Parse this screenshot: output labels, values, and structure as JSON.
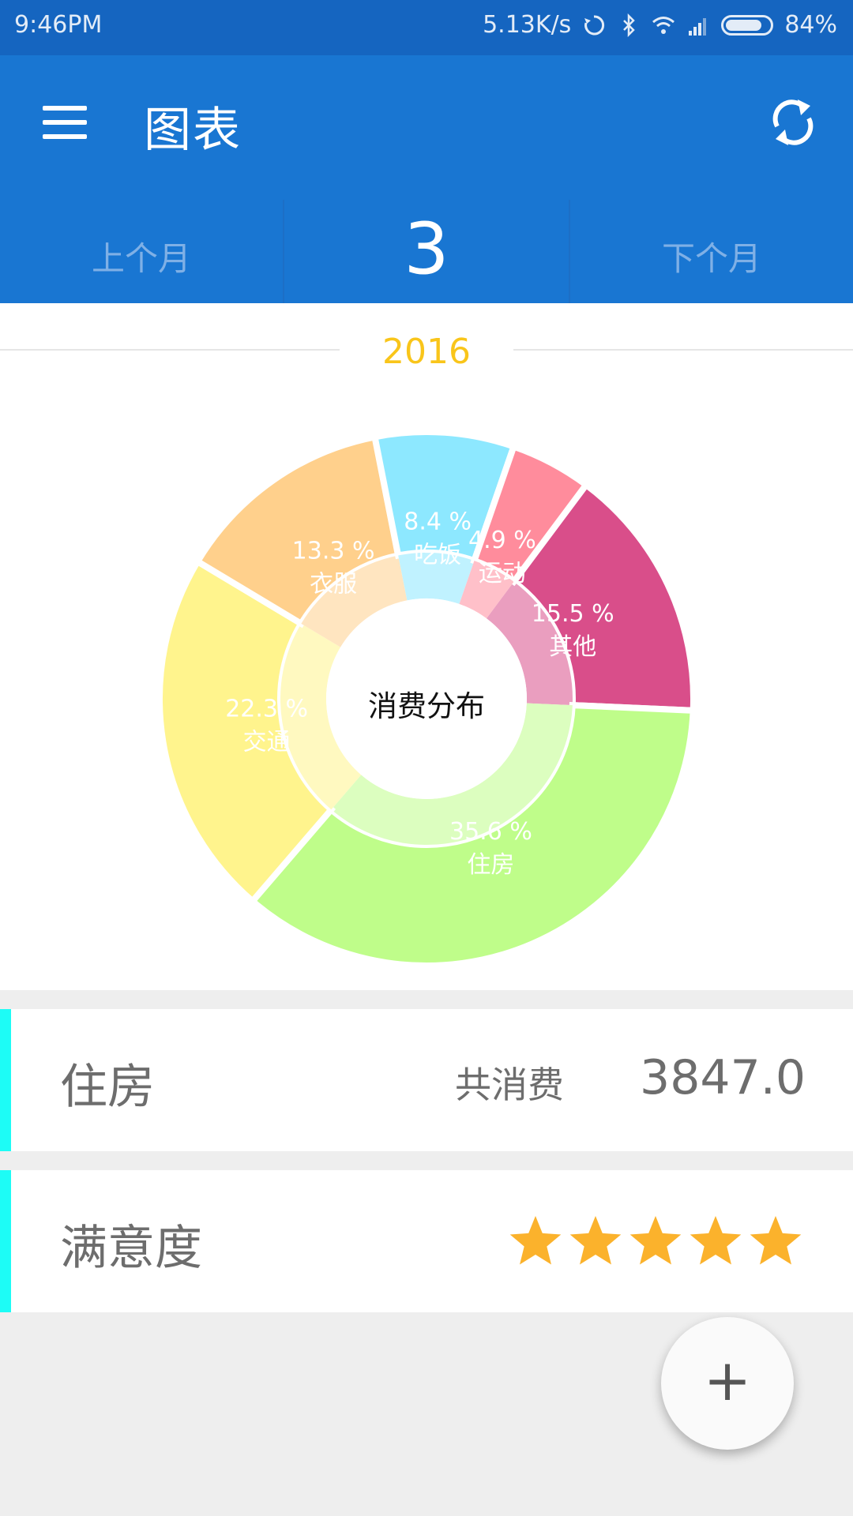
{
  "status_bar": {
    "time": "9:46PM",
    "net_speed": "5.13K/s",
    "battery": "84%",
    "battery_level": 0.84,
    "icons": [
      "sync-icon",
      "bluetooth-icon",
      "wifi-icon",
      "signal-icon",
      "battery-icon"
    ]
  },
  "app_bar": {
    "title": "图表",
    "left_icon": "menu-icon",
    "right_icon": "refresh-icon"
  },
  "month_nav": {
    "prev_label": "上个月",
    "current_month": "3",
    "next_label": "下个月"
  },
  "year": "2016",
  "chart_data": {
    "type": "pie",
    "center_label": "消费分布",
    "slices": [
      {
        "label": "其他",
        "percent": 15.5,
        "color": "#d94e8a"
      },
      {
        "label": "住房",
        "percent": 35.6,
        "color": "#bffd8a"
      },
      {
        "label": "交通",
        "percent": 22.3,
        "color": "#fff48d"
      },
      {
        "label": "衣服",
        "percent": 13.3,
        "color": "#ffd08c"
      },
      {
        "label": "吃饭",
        "percent": 8.4,
        "color": "#8de8ff"
      },
      {
        "label": "运动",
        "percent": 4.9,
        "color": "#ff8c9c"
      }
    ]
  },
  "summary": {
    "category": "住房",
    "total_label": "共消费",
    "total_value": "3847.0"
  },
  "satisfaction": {
    "label": "满意度",
    "rating": 5,
    "max": 5
  },
  "fab": {
    "symbol": "+"
  },
  "colors": {
    "status_bar": "#1565c0",
    "app_bar": "#1976d2",
    "accent_strip": "#1dfcf6",
    "year": "#f9c51a",
    "star": "#fbb22c"
  }
}
